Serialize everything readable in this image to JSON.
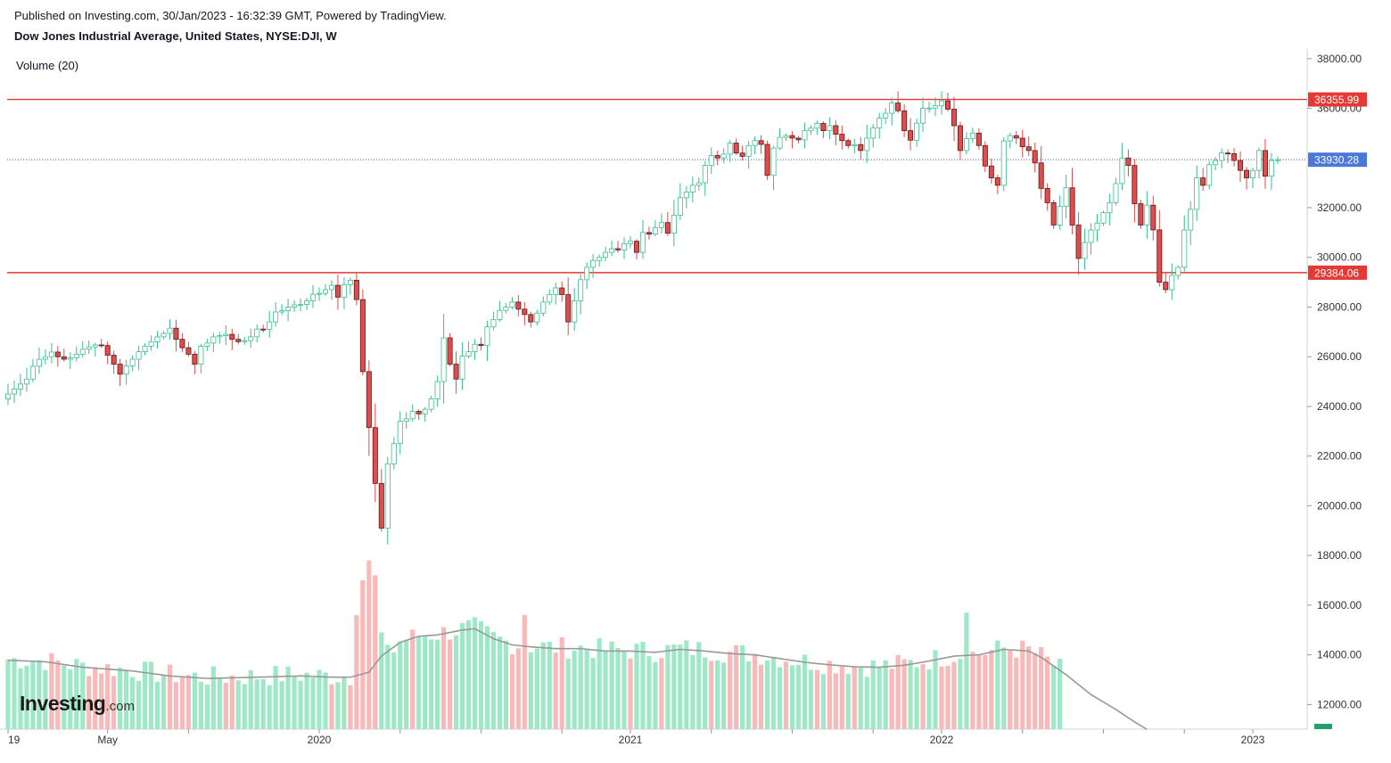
{
  "header": {
    "published": "Published on Investing.com, 30/Jan/2023 - 16:32:39 GMT, Powered by TradingView.",
    "title": "Dow Jones Industrial Average, United States, NYSE:DJI, W"
  },
  "volume_label": "Volume (20)",
  "logo": {
    "name": "Investing",
    "suffix": ".com"
  },
  "colors": {
    "up": "#26a69a",
    "up_fill": "#ffffff",
    "up_border": "#3dbd8e",
    "down": "#e04b4b",
    "down_fill": "#e04b4b",
    "vol_up": "#9ee8c8",
    "vol_down": "#f7b9b9",
    "ma_line": "#999999",
    "hline": "#e53935",
    "dotted": "#3a63c8",
    "price_badge_red": "#e53935",
    "price_badge_blue": "#4a78d8"
  },
  "chart_data": {
    "type": "candlestick",
    "symbol": "NYSE:DJI",
    "interval": "W",
    "y_axis_ticks": [
      "38000.00",
      "36000.00",
      "32000.00",
      "30000.00",
      "28000.00",
      "26000.00",
      "24000.00",
      "22000.00",
      "20000.00",
      "18000.00",
      "16000.00",
      "14000.00",
      "12000.00"
    ],
    "ylim": [
      11200,
      38300
    ],
    "x_axis_labels": [
      {
        "label": "19",
        "t": 0
      },
      {
        "label": "May",
        "t": 16
      },
      {
        "label": "2020",
        "t": 50
      },
      {
        "label": "2021",
        "t": 100
      },
      {
        "label": "2022",
        "t": 150
      },
      {
        "label": "2023",
        "t": 200
      }
    ],
    "x_ticks": [
      0,
      16,
      29,
      50,
      63,
      76,
      89,
      100,
      113,
      126,
      139,
      150,
      163,
      176,
      189,
      200
    ],
    "horizontal_lines": [
      {
        "value": 36355.99,
        "label": "36355.99",
        "style": "solid"
      },
      {
        "value": 29384.06,
        "label": "29384.06",
        "style": "solid"
      },
      {
        "value": 33930.28,
        "label": "33930.28",
        "style": "dotted"
      }
    ],
    "ohlc_anchors": [
      [
        0,
        24500
      ],
      [
        3,
        25100
      ],
      [
        5,
        25900
      ],
      [
        7,
        26100
      ],
      [
        9,
        25900
      ],
      [
        11,
        26100
      ],
      [
        13,
        26500
      ],
      [
        15,
        26450
      ],
      [
        16,
        26100
      ],
      [
        18,
        25300
      ],
      [
        19,
        25600
      ],
      [
        21,
        26200
      ],
      [
        23,
        26600
      ],
      [
        25,
        27000
      ],
      [
        26,
        27150
      ],
      [
        27,
        26700
      ],
      [
        28,
        26500
      ],
      [
        29,
        26100
      ],
      [
        30,
        25700
      ],
      [
        31,
        26300
      ],
      [
        33,
        26800
      ],
      [
        35,
        26900
      ],
      [
        36,
        26700
      ],
      [
        37,
        26500
      ],
      [
        39,
        26800
      ],
      [
        41,
        27100
      ],
      [
        43,
        27700
      ],
      [
        45,
        28000
      ],
      [
        47,
        28100
      ],
      [
        49,
        28400
      ],
      [
        51,
        28700
      ],
      [
        52,
        29000
      ],
      [
        53,
        28400
      ],
      [
        54,
        28900
      ],
      [
        55,
        29100
      ],
      [
        56,
        28300
      ],
      [
        57,
        25400
      ],
      [
        58,
        23200
      ],
      [
        59,
        20900
      ],
      [
        60,
        19100
      ],
      [
        61,
        21700
      ],
      [
        62,
        22500
      ],
      [
        63,
        23400
      ],
      [
        64,
        23600
      ],
      [
        65,
        23800
      ],
      [
        66,
        23700
      ],
      [
        67,
        23900
      ],
      [
        68,
        24300
      ],
      [
        69,
        25000
      ],
      [
        70,
        26700
      ],
      [
        71,
        25700
      ],
      [
        72,
        25100
      ],
      [
        73,
        25900
      ],
      [
        74,
        26200
      ],
      [
        75,
        26500
      ],
      [
        76,
        26600
      ],
      [
        77,
        27200
      ],
      [
        79,
        27800
      ],
      [
        81,
        28200
      ],
      [
        82,
        28000
      ],
      [
        83,
        27700
      ],
      [
        84,
        27400
      ],
      [
        85,
        27900
      ],
      [
        87,
        28500
      ],
      [
        88,
        28800
      ],
      [
        89,
        28500
      ],
      [
        90,
        27400
      ],
      [
        91,
        28300
      ],
      [
        92,
        29100
      ],
      [
        93,
        29600
      ],
      [
        94,
        29900
      ],
      [
        95,
        30000
      ],
      [
        96,
        30200
      ],
      [
        98,
        30300
      ],
      [
        100,
        30800
      ],
      [
        101,
        30200
      ],
      [
        102,
        31000
      ],
      [
        103,
        31100
      ],
      [
        104,
        31200
      ],
      [
        105,
        31400
      ],
      [
        106,
        30900
      ],
      [
        107,
        31700
      ],
      [
        108,
        32400
      ],
      [
        109,
        32700
      ],
      [
        110,
        32900
      ],
      [
        111,
        33000
      ],
      [
        112,
        33600
      ],
      [
        113,
        34100
      ],
      [
        114,
        34000
      ],
      [
        115,
        34300
      ],
      [
        116,
        34600
      ],
      [
        117,
        34200
      ],
      [
        118,
        33900
      ],
      [
        119,
        34500
      ],
      [
        120,
        34700
      ],
      [
        121,
        34500
      ],
      [
        122,
        33300
      ],
      [
        123,
        34400
      ],
      [
        124,
        34700
      ],
      [
        125,
        34900
      ],
      [
        126,
        34800
      ],
      [
        127,
        34900
      ],
      [
        128,
        35100
      ],
      [
        129,
        35200
      ],
      [
        130,
        35400
      ],
      [
        131,
        35100
      ],
      [
        132,
        35300
      ],
      [
        133,
        34800
      ],
      [
        134,
        34700
      ],
      [
        135,
        34500
      ],
      [
        136,
        34600
      ],
      [
        137,
        34300
      ],
      [
        138,
        34800
      ],
      [
        139,
        35300
      ],
      [
        140,
        35600
      ],
      [
        141,
        35800
      ],
      [
        142,
        36300
      ],
      [
        143,
        35900
      ],
      [
        144,
        35100
      ],
      [
        145,
        34600
      ],
      [
        146,
        35400
      ],
      [
        147,
        36000
      ],
      [
        148,
        35900
      ],
      [
        149,
        36100
      ],
      [
        150,
        36300
      ],
      [
        151,
        35900
      ],
      [
        152,
        35300
      ],
      [
        153,
        34300
      ],
      [
        154,
        34800
      ],
      [
        155,
        35000
      ],
      [
        156,
        34500
      ],
      [
        157,
        33800
      ],
      [
        158,
        33200
      ],
      [
        159,
        32900
      ],
      [
        160,
        34800
      ],
      [
        161,
        34900
      ],
      [
        162,
        34800
      ],
      [
        163,
        34600
      ],
      [
        164,
        34300
      ],
      [
        165,
        33800
      ],
      [
        166,
        32900
      ],
      [
        167,
        32200
      ],
      [
        168,
        31300
      ],
      [
        169,
        32000
      ],
      [
        170,
        32800
      ],
      [
        171,
        31300
      ],
      [
        172,
        29900
      ],
      [
        173,
        30600
      ],
      [
        174,
        31100
      ],
      [
        175,
        31300
      ],
      [
        176,
        31800
      ],
      [
        177,
        32200
      ],
      [
        178,
        32800
      ],
      [
        179,
        34000
      ],
      [
        180,
        33700
      ],
      [
        181,
        32300
      ],
      [
        182,
        31300
      ],
      [
        183,
        32100
      ],
      [
        184,
        31000
      ],
      [
        185,
        29000
      ],
      [
        186,
        28700
      ],
      [
        187,
        29400
      ],
      [
        188,
        29600
      ],
      [
        189,
        31100
      ],
      [
        190,
        32000
      ],
      [
        191,
        33200
      ],
      [
        192,
        32900
      ],
      [
        193,
        33800
      ],
      [
        194,
        33900
      ],
      [
        195,
        34200
      ],
      [
        196,
        34350
      ],
      [
        197,
        33900
      ],
      [
        198,
        33500
      ],
      [
        199,
        33300
      ],
      [
        200,
        33500
      ],
      [
        201,
        34300
      ],
      [
        202,
        33400
      ],
      [
        203,
        33900
      ],
      [
        204,
        33930
      ]
    ],
    "volume_ma_anchors": [
      [
        0,
        13780
      ],
      [
        6,
        13720
      ],
      [
        12,
        13500
      ],
      [
        20,
        13350
      ],
      [
        26,
        13150
      ],
      [
        32,
        13050
      ],
      [
        40,
        13100
      ],
      [
        47,
        13150
      ],
      [
        52,
        13100
      ],
      [
        55,
        13100
      ],
      [
        58,
        13300
      ],
      [
        60,
        13950
      ],
      [
        63,
        14500
      ],
      [
        66,
        14750
      ],
      [
        69,
        14800
      ],
      [
        73,
        15000
      ],
      [
        75,
        15050
      ],
      [
        78,
        14650
      ],
      [
        81,
        14400
      ],
      [
        84,
        14320
      ],
      [
        88,
        14250
      ],
      [
        92,
        14250
      ],
      [
        96,
        14150
      ],
      [
        100,
        14150
      ],
      [
        104,
        14100
      ],
      [
        108,
        14220
      ],
      [
        112,
        14150
      ],
      [
        116,
        14050
      ],
      [
        120,
        14000
      ],
      [
        124,
        13850
      ],
      [
        128,
        13700
      ],
      [
        132,
        13600
      ],
      [
        136,
        13520
      ],
      [
        140,
        13500
      ],
      [
        144,
        13580
      ],
      [
        148,
        13750
      ],
      [
        152,
        13950
      ],
      [
        156,
        14000
      ],
      [
        160,
        14220
      ],
      [
        164,
        14150
      ],
      [
        166,
        13900
      ],
      [
        170,
        13200
      ],
      [
        174,
        12400
      ],
      [
        178,
        11800
      ],
      [
        181,
        11300
      ],
      [
        183,
        11000
      ]
    ],
    "volume_bars_count": 170,
    "volume_min": 11200,
    "volume_max": 17800
  }
}
